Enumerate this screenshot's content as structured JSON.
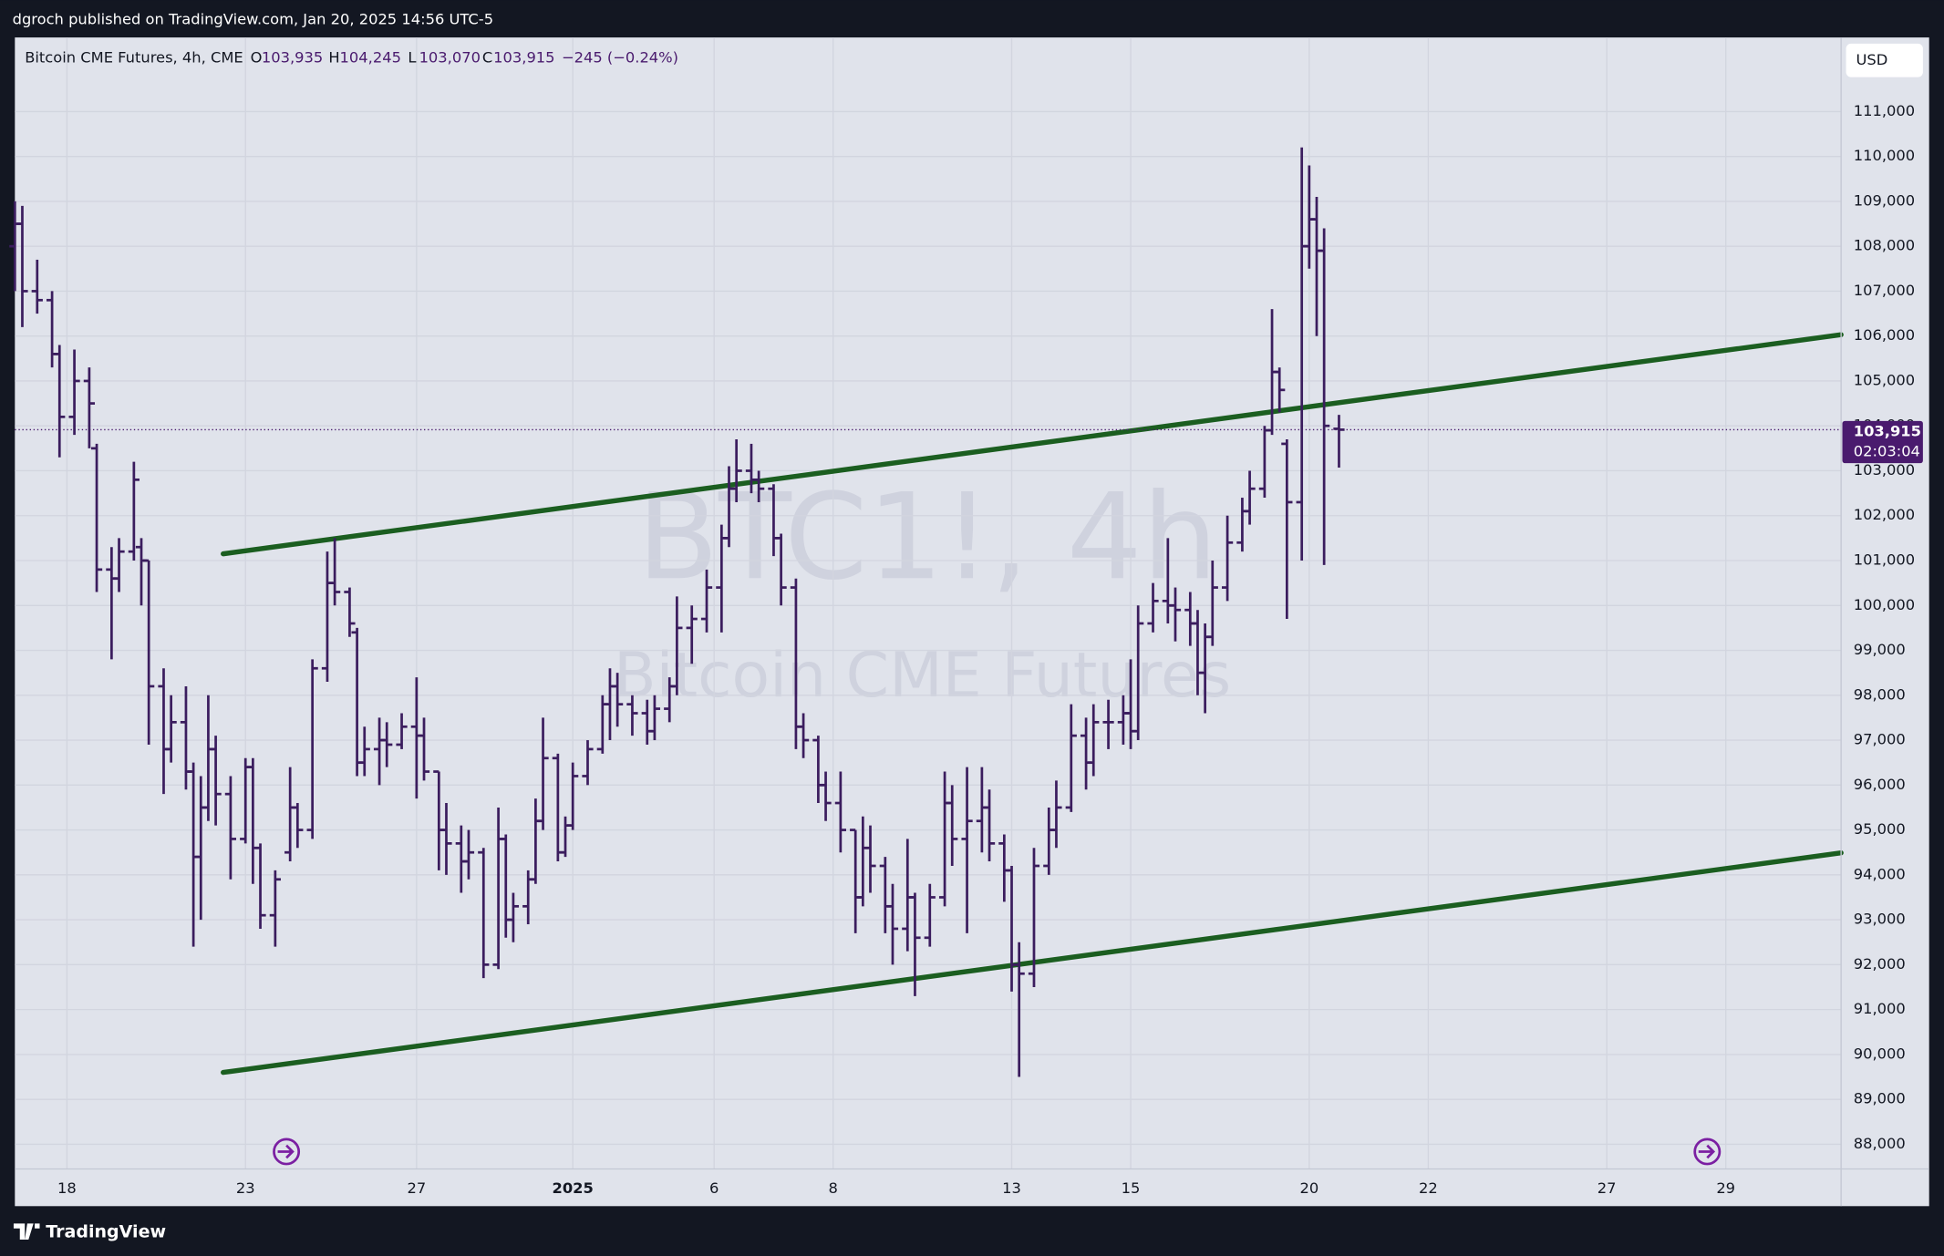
{
  "header": {
    "publisher": "dgroch published on TradingView.com, Jan 20, 2025 14:56 UTC-5"
  },
  "footer": {
    "brand": "TradingView"
  },
  "currency_button": "USD",
  "legend": {
    "symbol": "Bitcoin CME Futures, 4h, CME",
    "items": [
      {
        "key": "O",
        "value": "103,935"
      },
      {
        "key": "H",
        "value": "104,245"
      },
      {
        "key": "L",
        "value": "103,070"
      },
      {
        "key": "C",
        "value": "103,915"
      }
    ],
    "change": "−245 (−0.24%)"
  },
  "watermark": {
    "ticker": "BTC1!, 4h",
    "name": "Bitcoin CME Futures"
  },
  "chart_data": {
    "type": "ohlc",
    "color": "#3b1d5e",
    "grid": true,
    "xlim": [
      -2,
      243.5
    ],
    "ylim": [
      87450,
      112650
    ],
    "xticks": [
      {
        "value": 5,
        "label": "18"
      },
      {
        "value": 29,
        "label": "23"
      },
      {
        "value": 52,
        "label": "27"
      },
      {
        "value": 73,
        "label": "2025"
      },
      {
        "value": 92,
        "label": "6"
      },
      {
        "value": 108,
        "label": "8"
      },
      {
        "value": 132,
        "label": "13"
      },
      {
        "value": 148,
        "label": "15"
      },
      {
        "value": 172,
        "label": "20"
      },
      {
        "value": 188,
        "label": "22"
      },
      {
        "value": 212,
        "label": "27"
      },
      {
        "value": 228,
        "label": "29"
      }
    ],
    "yticks": [
      {
        "value": 88000,
        "label": "88,000"
      },
      {
        "value": 89000,
        "label": "89,000"
      },
      {
        "value": 90000,
        "label": "90,000"
      },
      {
        "value": 91000,
        "label": "91,000"
      },
      {
        "value": 92000,
        "label": "92,000"
      },
      {
        "value": 93000,
        "label": "93,000"
      },
      {
        "value": 94000,
        "label": "94,000"
      },
      {
        "value": 95000,
        "label": "95,000"
      },
      {
        "value": 96000,
        "label": "96,000"
      },
      {
        "value": 97000,
        "label": "97,000"
      },
      {
        "value": 98000,
        "label": "98,000"
      },
      {
        "value": 99000,
        "label": "99,000"
      },
      {
        "value": 100000,
        "label": "100,000"
      },
      {
        "value": 101000,
        "label": "101,000"
      },
      {
        "value": 102000,
        "label": "102,000"
      },
      {
        "value": 103000,
        "label": "103,000"
      },
      {
        "value": 104000,
        "label": "104,000"
      },
      {
        "value": 105000,
        "label": "105,000"
      },
      {
        "value": 106000,
        "label": "106,000"
      },
      {
        "value": 107000,
        "label": "107,000"
      },
      {
        "value": 108000,
        "label": "108,000"
      },
      {
        "value": 109000,
        "label": "109,000"
      },
      {
        "value": 110000,
        "label": "110,000"
      },
      {
        "value": 111000,
        "label": "111,000"
      }
    ],
    "last_price": {
      "value": 103915,
      "label": "103,915",
      "countdown": "02:03:04",
      "color": "#4a1b6e"
    },
    "lines": [
      {
        "x": [
          26,
          243.5
        ],
        "y": [
          101150,
          106030
        ],
        "color": "#1b5e20"
      },
      {
        "x": [
          26,
          243.5
        ],
        "y": [
          89600,
          94490
        ],
        "color": "#1b5e20"
      }
    ],
    "x": [
      -2,
      -1,
      1,
      3,
      4,
      6,
      8,
      9,
      11,
      12,
      14,
      15,
      16,
      18,
      19,
      21,
      22,
      23,
      24,
      25,
      27,
      29,
      30,
      31,
      33,
      35,
      36,
      38,
      40,
      41,
      43,
      44,
      45,
      47,
      48,
      50,
      52,
      53,
      55,
      56,
      58,
      59,
      61,
      63,
      64,
      65,
      67,
      68,
      69,
      71,
      72,
      73,
      75,
      77,
      78,
      79,
      81,
      83,
      84,
      86,
      87,
      89,
      91,
      93,
      94,
      95,
      97,
      98,
      100,
      101,
      103,
      104,
      106,
      107,
      109,
      111,
      112,
      113,
      115,
      116,
      118,
      119,
      121,
      123,
      124,
      126,
      128,
      129,
      131,
      132,
      133,
      135,
      137,
      138,
      140,
      142,
      143,
      145,
      147,
      148,
      149,
      151,
      153,
      154,
      156,
      157,
      158,
      159,
      161,
      163,
      164,
      166,
      167,
      168,
      169,
      171,
      172,
      173,
      174,
      176
    ],
    "open": [
      108000,
      108500,
      107000,
      106800,
      105600,
      104200,
      105000,
      103500,
      100800,
      100600,
      101200,
      101300,
      101000,
      98200,
      96800,
      97400,
      96300,
      94400,
      95500,
      96800,
      95800,
      94800,
      96400,
      94600,
      93100,
      94500,
      95500,
      95000,
      98600,
      100500,
      100300,
      99400,
      96500,
      96800,
      97000,
      96900,
      97300,
      97100,
      96300,
      95000,
      94700,
      94300,
      94500,
      92000,
      94800,
      93000,
      93300,
      93900,
      95200,
      96600,
      94500,
      95100,
      96200,
      96800,
      97800,
      98200,
      97800,
      97600,
      97200,
      97700,
      98200,
      99500,
      99700,
      100400,
      101500,
      102600,
      103000,
      102800,
      102600,
      101500,
      100400,
      97300,
      97000,
      96000,
      95600,
      95000,
      93500,
      94600,
      94200,
      93300,
      92800,
      93500,
      92600,
      93500,
      95600,
      94800,
      95200,
      95500,
      94700,
      94100,
      92000,
      91800,
      94200,
      95000,
      95500,
      97100,
      96500,
      97400,
      97400,
      97600,
      97200,
      99600,
      100100,
      100000,
      99900,
      99600,
      98500,
      99300,
      100400,
      101400,
      102100,
      102600,
      103900,
      105200,
      103600,
      102300,
      108000,
      108600,
      107900,
      103935
    ],
    "high": [
      109000,
      108900,
      107700,
      107000,
      105800,
      105700,
      105300,
      103600,
      101300,
      101500,
      103200,
      101500,
      101000,
      98600,
      98000,
      98200,
      96500,
      96200,
      98000,
      97100,
      96200,
      96600,
      96600,
      94700,
      94100,
      96400,
      95600,
      98800,
      101200,
      101500,
      100400,
      99500,
      97300,
      97500,
      97400,
      97600,
      98400,
      97500,
      96300,
      95600,
      95100,
      95000,
      94600,
      95500,
      94900,
      93600,
      94100,
      95700,
      97500,
      96700,
      95300,
      96500,
      97000,
      98000,
      98600,
      98500,
      98000,
      97900,
      98000,
      98400,
      100200,
      100000,
      100800,
      101800,
      103100,
      103700,
      103600,
      103000,
      102700,
      101600,
      100600,
      97600,
      97100,
      96300,
      96300,
      95000,
      95300,
      95100,
      94400,
      93800,
      94800,
      93600,
      93800,
      96300,
      96000,
      96400,
      96400,
      95900,
      94900,
      94200,
      92500,
      94600,
      95500,
      96100,
      97800,
      97500,
      97800,
      97900,
      98000,
      98800,
      100000,
      100500,
      101500,
      100400,
      100300,
      99900,
      99600,
      101000,
      102000,
      102400,
      103000,
      104000,
      106600,
      105300,
      103700,
      110200,
      109800,
      109100,
      108400,
      104245
    ],
    "low": [
      107000,
      106200,
      106500,
      105300,
      103300,
      103800,
      103500,
      100300,
      98800,
      100300,
      101000,
      100000,
      96900,
      95800,
      96500,
      95900,
      92400,
      93000,
      95200,
      95100,
      93900,
      94700,
      93800,
      92800,
      92400,
      94300,
      94600,
      94800,
      98300,
      100000,
      99300,
      96200,
      96200,
      96000,
      96400,
      96800,
      95700,
      96100,
      94100,
      94000,
      93600,
      93900,
      91700,
      91900,
      92600,
      92500,
      92900,
      93800,
      95000,
      94300,
      94400,
      95000,
      96000,
      96700,
      97000,
      97300,
      97100,
      96900,
      97000,
      97400,
      98000,
      98700,
      99400,
      99400,
      101300,
      102300,
      102500,
      102300,
      101100,
      100000,
      96800,
      96600,
      95600,
      95200,
      94500,
      92700,
      93300,
      93600,
      92700,
      92000,
      92300,
      91300,
      92400,
      93300,
      94200,
      92700,
      94500,
      94300,
      93400,
      91400,
      89500,
      91500,
      94000,
      94600,
      95400,
      95900,
      96200,
      96800,
      96900,
      96800,
      97000,
      99400,
      99600,
      99200,
      99100,
      98000,
      97600,
      99100,
      100100,
      101200,
      101800,
      102400,
      103800,
      104300,
      99700,
      101000,
      107500,
      106000,
      100900,
      103070
    ],
    "close": [
      108500,
      107000,
      106800,
      105600,
      104200,
      105000,
      104500,
      100800,
      100600,
      101200,
      102800,
      101000,
      98200,
      96800,
      97400,
      96300,
      94400,
      95500,
      96800,
      95800,
      94800,
      96400,
      94600,
      93100,
      93900,
      95500,
      95000,
      98600,
      100500,
      100300,
      99600,
      96500,
      96800,
      97000,
      96900,
      97300,
      97100,
      96300,
      95000,
      94700,
      94300,
      94500,
      92000,
      94800,
      93000,
      93300,
      93900,
      95200,
      96600,
      94500,
      95100,
      96200,
      96800,
      97800,
      98200,
      97800,
      97600,
      97200,
      97700,
      98200,
      99500,
      99700,
      100400,
      101500,
      102600,
      103000,
      102800,
      102600,
      101500,
      100400,
      97300,
      97000,
      96000,
      95600,
      95000,
      93500,
      94600,
      94200,
      93300,
      92800,
      93500,
      92600,
      93500,
      95600,
      94800,
      95200,
      95500,
      94700,
      94100,
      92000,
      91800,
      94200,
      95000,
      95500,
      97100,
      96500,
      97400,
      97400,
      97600,
      97200,
      99600,
      100100,
      100000,
      99900,
      99600,
      98500,
      99300,
      100400,
      101400,
      102100,
      102600,
      103900,
      105200,
      104800,
      102300,
      108000,
      108600,
      107900,
      104000,
      103915
    ]
  }
}
